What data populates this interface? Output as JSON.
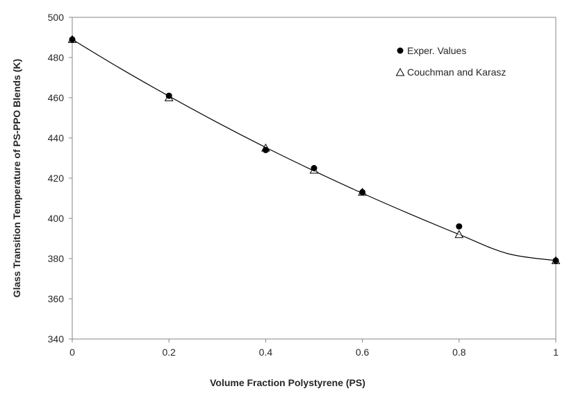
{
  "chart_data": {
    "type": "scatter",
    "xlabel": "Volume Fraction Polystyrene (PS)",
    "ylabel": "Glass Transition Temperature of PS-PPO Blends (K)",
    "xlim": [
      0,
      1
    ],
    "ylim": [
      340,
      500
    ],
    "x_ticks": [
      "0",
      "0.2",
      "0.4",
      "0.6",
      "0.8",
      "1"
    ],
    "y_ticks": [
      "340",
      "360",
      "380",
      "400",
      "420",
      "440",
      "460",
      "480",
      "500"
    ],
    "grid": false,
    "legend_position": "top-right",
    "series": [
      {
        "name": "Exper. Values",
        "marker": "filled-circle",
        "color": "#000000",
        "x": [
          0,
          0.2,
          0.4,
          0.5,
          0.6,
          0.8,
          1.0
        ],
        "y": [
          489,
          461,
          434,
          425,
          413,
          396,
          379
        ]
      },
      {
        "name": "Couchman and Karasz",
        "marker": "open-triangle",
        "color": "#000000",
        "x": [
          0,
          0.2,
          0.4,
          0.5,
          0.6,
          0.8,
          1.0
        ],
        "y": [
          489,
          460,
          435,
          424,
          413,
          392,
          379
        ]
      }
    ],
    "fit_curve": {
      "x": [
        0,
        0.1,
        0.2,
        0.3,
        0.4,
        0.5,
        0.6,
        0.7,
        0.8,
        0.9,
        1.0
      ],
      "y": [
        489,
        474.5,
        460.8,
        447.7,
        435.3,
        423.6,
        412.5,
        402,
        392,
        382.5,
        379
      ]
    }
  }
}
